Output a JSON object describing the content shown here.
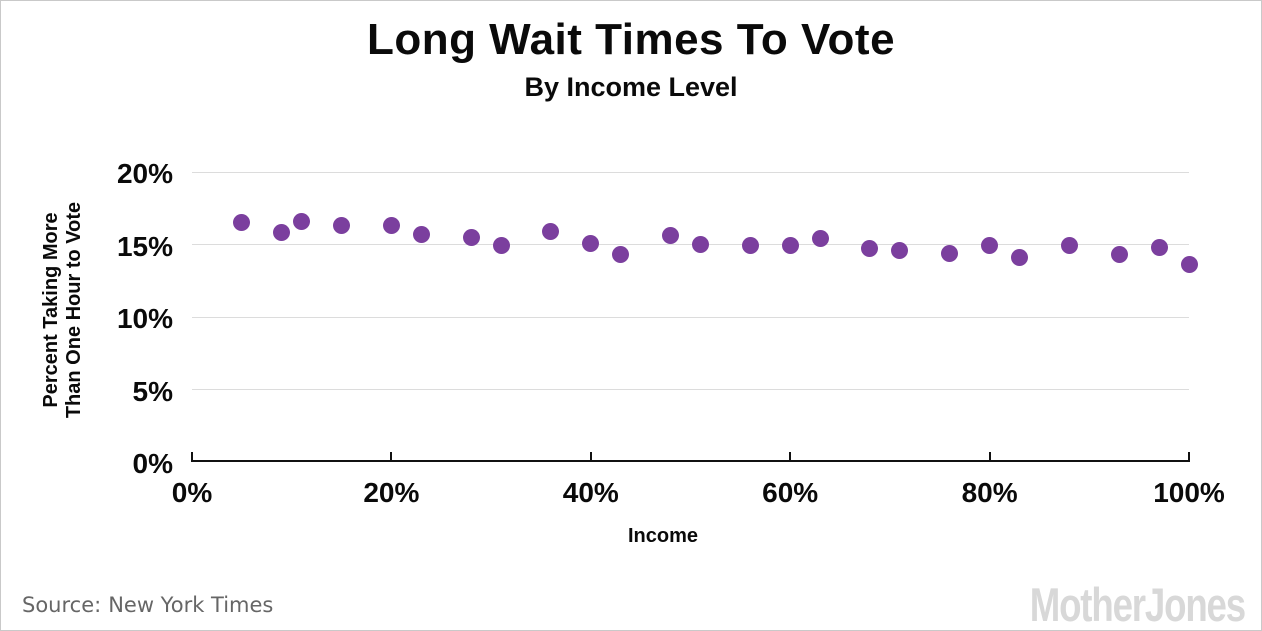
{
  "header": {
    "title": "Long Wait Times To Vote",
    "subtitle": "By Income Level"
  },
  "footer": {
    "source_label": "Source:",
    "source_text": "New York Times",
    "logo_text": "MotherJones"
  },
  "chart_data": {
    "type": "scatter",
    "title": "Long Wait Times To Vote",
    "subtitle": "By Income Level",
    "xlabel": "Income",
    "ylabel_lines": [
      "Percent Taking More",
      "Than One Hour to Vote"
    ],
    "xlim": [
      0,
      100
    ],
    "ylim": [
      0,
      20
    ],
    "grid": "horizontal-only",
    "legend": "none",
    "dot_color": "#7b3f9e",
    "gridline_color": "#dcdcdc",
    "x_ticks": [
      {
        "value": 0,
        "label": "0%"
      },
      {
        "value": 20,
        "label": "20%"
      },
      {
        "value": 40,
        "label": "40%"
      },
      {
        "value": 60,
        "label": "60%"
      },
      {
        "value": 80,
        "label": "80%"
      },
      {
        "value": 100,
        "label": "100%"
      }
    ],
    "y_ticks": [
      {
        "value": 0,
        "label": "0%"
      },
      {
        "value": 5,
        "label": "5%"
      },
      {
        "value": 10,
        "label": "10%"
      },
      {
        "value": 15,
        "label": "15%"
      },
      {
        "value": 20,
        "label": "20%"
      }
    ],
    "points": [
      {
        "x": 5,
        "y": 16.5
      },
      {
        "x": 9,
        "y": 15.8
      },
      {
        "x": 11,
        "y": 16.6
      },
      {
        "x": 15,
        "y": 16.3
      },
      {
        "x": 20,
        "y": 16.3
      },
      {
        "x": 23,
        "y": 15.7
      },
      {
        "x": 28,
        "y": 15.5
      },
      {
        "x": 31,
        "y": 14.9
      },
      {
        "x": 36,
        "y": 15.9
      },
      {
        "x": 40,
        "y": 15.1
      },
      {
        "x": 43,
        "y": 14.3
      },
      {
        "x": 48,
        "y": 15.6
      },
      {
        "x": 51,
        "y": 15.0
      },
      {
        "x": 56,
        "y": 14.9
      },
      {
        "x": 60,
        "y": 14.9
      },
      {
        "x": 63,
        "y": 15.4
      },
      {
        "x": 68,
        "y": 14.7
      },
      {
        "x": 71,
        "y": 14.6
      },
      {
        "x": 76,
        "y": 14.4
      },
      {
        "x": 80,
        "y": 14.9
      },
      {
        "x": 83,
        "y": 14.1
      },
      {
        "x": 88,
        "y": 14.9
      },
      {
        "x": 93,
        "y": 14.3
      },
      {
        "x": 97,
        "y": 14.8
      },
      {
        "x": 100,
        "y": 13.6
      }
    ]
  }
}
